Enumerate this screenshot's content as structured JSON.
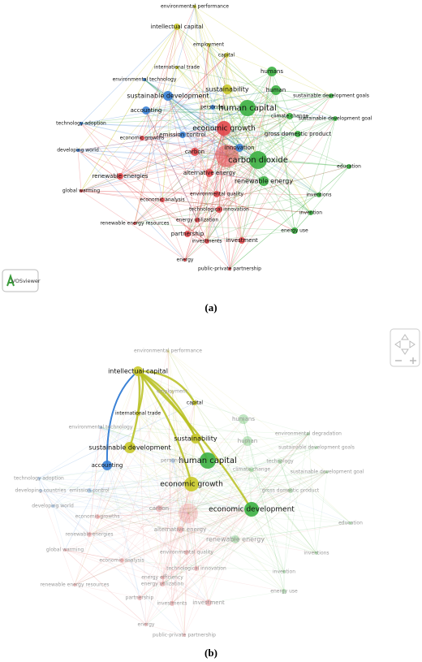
{
  "panel_a": {
    "nodes": [
      "environmental performance",
      "intellectual capital",
      "employment",
      "capital",
      "international trade",
      "environmental technology",
      "sustainability",
      "humans",
      "human",
      "sustainable development",
      "accounting",
      "personnel",
      "human capital",
      "sustainable development goals",
      "climate change",
      "sustainable development goal",
      "technology adoption",
      "economic growth",
      "gross domestic product",
      "emission control",
      "developing world",
      "economic growths",
      "innovation",
      "carbon",
      "carbon dioxide",
      "education",
      "renewable energies",
      "alternative energy",
      "renewable energy",
      "global warming",
      "economic analysis",
      "environmental quality",
      "inventions",
      "technological innovation",
      "invention",
      "renewable energy resources",
      "energy utilization",
      "energy use",
      "partnership",
      "investments",
      "investment",
      "energy",
      "public-private partnership"
    ],
    "logo": "VOSviewer",
    "caption": "(a)"
  },
  "panel_b": {
    "nodes": [
      "environmental performance",
      "intellectual capital",
      "employment",
      "capital",
      "international trade",
      "environmental technology",
      "humans",
      "environmental degradation",
      "sustainability",
      "human",
      "sustainable development goals",
      "sustainable development",
      "technology",
      "human capital",
      "personnel",
      "accounting",
      "sustainable development goal",
      "climate change",
      "technology adoption",
      "developing countries",
      "emission control",
      "economic growth",
      "gross domestic product",
      "developing world",
      "economic development",
      "economic growths",
      "carbon",
      "education",
      "renewable energies",
      "alternative energy",
      "renewable energy",
      "global warming",
      "economic analysis",
      "environmental quality",
      "inventions",
      "technological innovation",
      "invention",
      "energy efficiency",
      "renewable energy resources",
      "energy utilization",
      "energy use",
      "partnership",
      "investments",
      "investment",
      "energy",
      "public-private partnership"
    ],
    "caption": "(b)"
  }
}
